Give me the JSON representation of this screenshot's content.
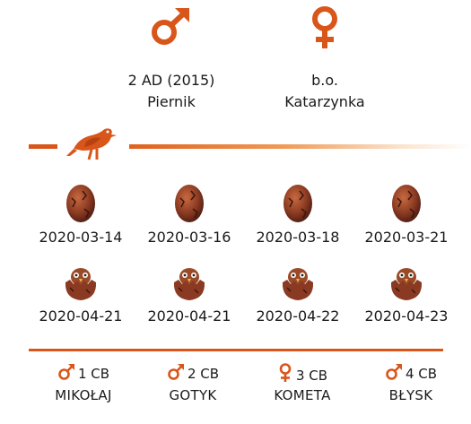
{
  "colors": {
    "accent": "#d9561b",
    "egg": "#8a3a22",
    "chick": "#9a4a26"
  },
  "parents": {
    "male": {
      "symbol": "male-icon",
      "code": "2 AD (2015)",
      "name": "Piernik"
    },
    "female": {
      "symbol": "female-icon",
      "code": "b.o.",
      "name": "Katarzynka"
    }
  },
  "divider": {
    "icon": "bird-icon"
  },
  "eggs": [
    "2020-03-14",
    "2020-03-16",
    "2020-03-18",
    "2020-03-21"
  ],
  "hatches": [
    "2020-04-21",
    "2020-04-21",
    "2020-04-22",
    "2020-04-23"
  ],
  "chicks": [
    {
      "sex": "male",
      "ring": "1 CB",
      "name": "MIKOŁAJ"
    },
    {
      "sex": "male",
      "ring": "2 CB",
      "name": "GOTYK"
    },
    {
      "sex": "female",
      "ring": "3 CB",
      "name": "KOMETA"
    },
    {
      "sex": "male",
      "ring": "4 CB",
      "name": "BŁYSK"
    }
  ]
}
